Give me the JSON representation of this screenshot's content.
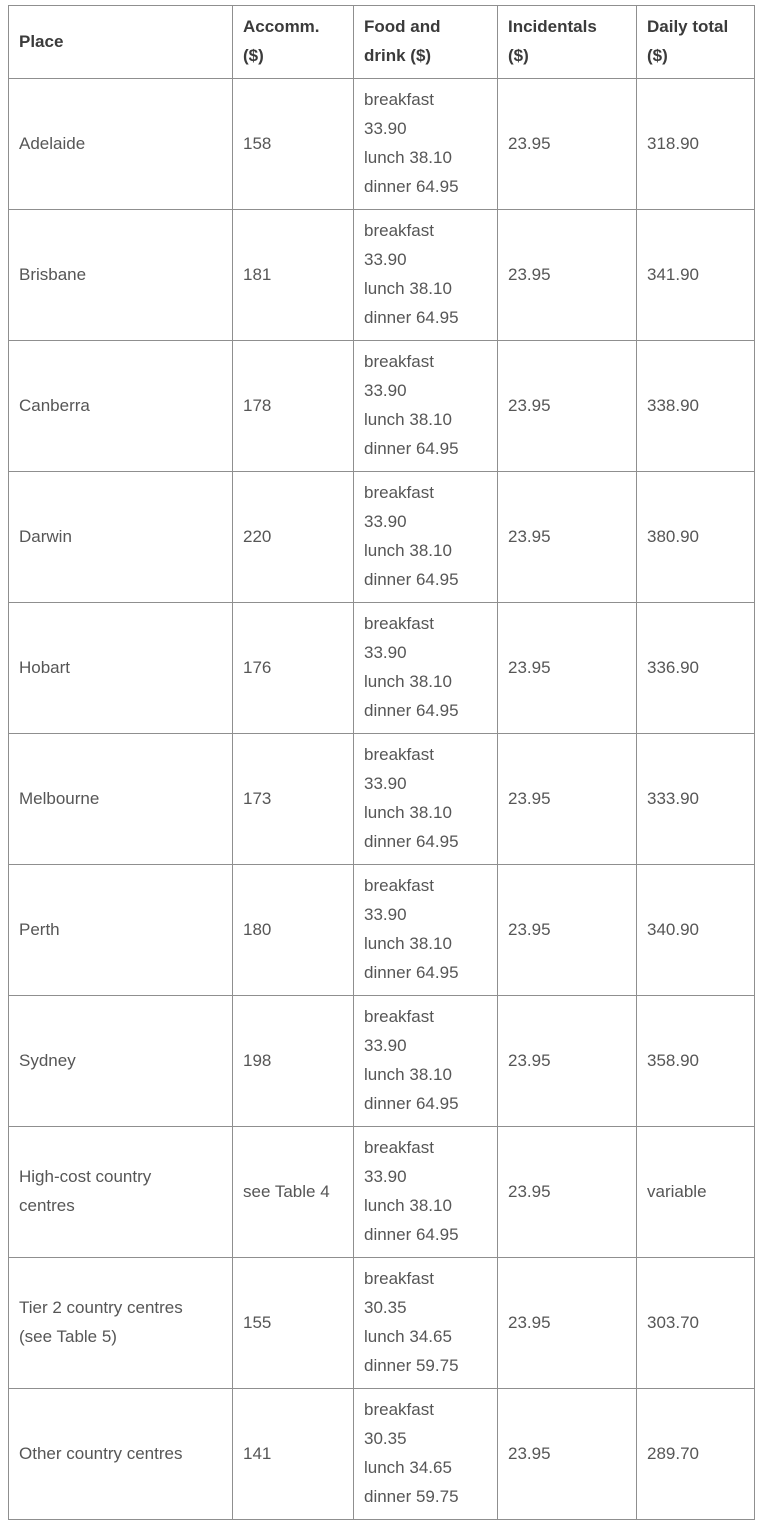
{
  "table": {
    "columns": [
      "Place",
      "Accomm.\n($)",
      "Food and\ndrink ($)",
      "Incidentals\n($)",
      "Daily total\n($)"
    ],
    "rows": [
      {
        "place": "Adelaide",
        "accomm": "158",
        "food": "breakfast\n33.90\nlunch 38.10\ndinner 64.95",
        "incidentals": "23.95",
        "daily_total": "318.90"
      },
      {
        "place": "Brisbane",
        "accomm": "181",
        "food": "breakfast\n33.90\nlunch 38.10\ndinner 64.95",
        "incidentals": "23.95",
        "daily_total": "341.90"
      },
      {
        "place": "Canberra",
        "accomm": "178",
        "food": "breakfast\n33.90\nlunch 38.10\ndinner 64.95",
        "incidentals": "23.95",
        "daily_total": "338.90"
      },
      {
        "place": "Darwin",
        "accomm": "220",
        "food": "breakfast\n33.90\nlunch 38.10\ndinner 64.95",
        "incidentals": "23.95",
        "daily_total": "380.90"
      },
      {
        "place": "Hobart",
        "accomm": "176",
        "food": "breakfast\n33.90\nlunch 38.10\ndinner 64.95",
        "incidentals": "23.95",
        "daily_total": "336.90"
      },
      {
        "place": "Melbourne",
        "accomm": "173",
        "food": "breakfast\n33.90\nlunch 38.10\ndinner 64.95",
        "incidentals": "23.95",
        "daily_total": "333.90"
      },
      {
        "place": "Perth",
        "accomm": "180",
        "food": "breakfast\n33.90\nlunch 38.10\ndinner 64.95",
        "incidentals": "23.95",
        "daily_total": "340.90"
      },
      {
        "place": "Sydney",
        "accomm": "198",
        "food": "breakfast\n33.90\nlunch 38.10\ndinner 64.95",
        "incidentals": "23.95",
        "daily_total": "358.90"
      },
      {
        "place": "High-cost country\ncentres",
        "accomm": "see Table 4",
        "food": "breakfast\n33.90\nlunch 38.10\ndinner 64.95",
        "incidentals": "23.95",
        "daily_total": "variable"
      },
      {
        "place": "Tier 2 country centres\n(see Table 5)",
        "accomm": "155",
        "food": "breakfast\n30.35\nlunch 34.65\ndinner 59.75",
        "incidentals": "23.95",
        "daily_total": "303.70"
      },
      {
        "place": "Other country centres",
        "accomm": "141",
        "food": "breakfast\n30.35\nlunch 34.65\ndinner 59.75",
        "incidentals": "23.95",
        "daily_total": "289.70"
      }
    ],
    "colors": {
      "border": "#8f8f8f",
      "header_text": "#3b3b3b",
      "body_text": "#565656",
      "background": "#ffffff"
    }
  }
}
